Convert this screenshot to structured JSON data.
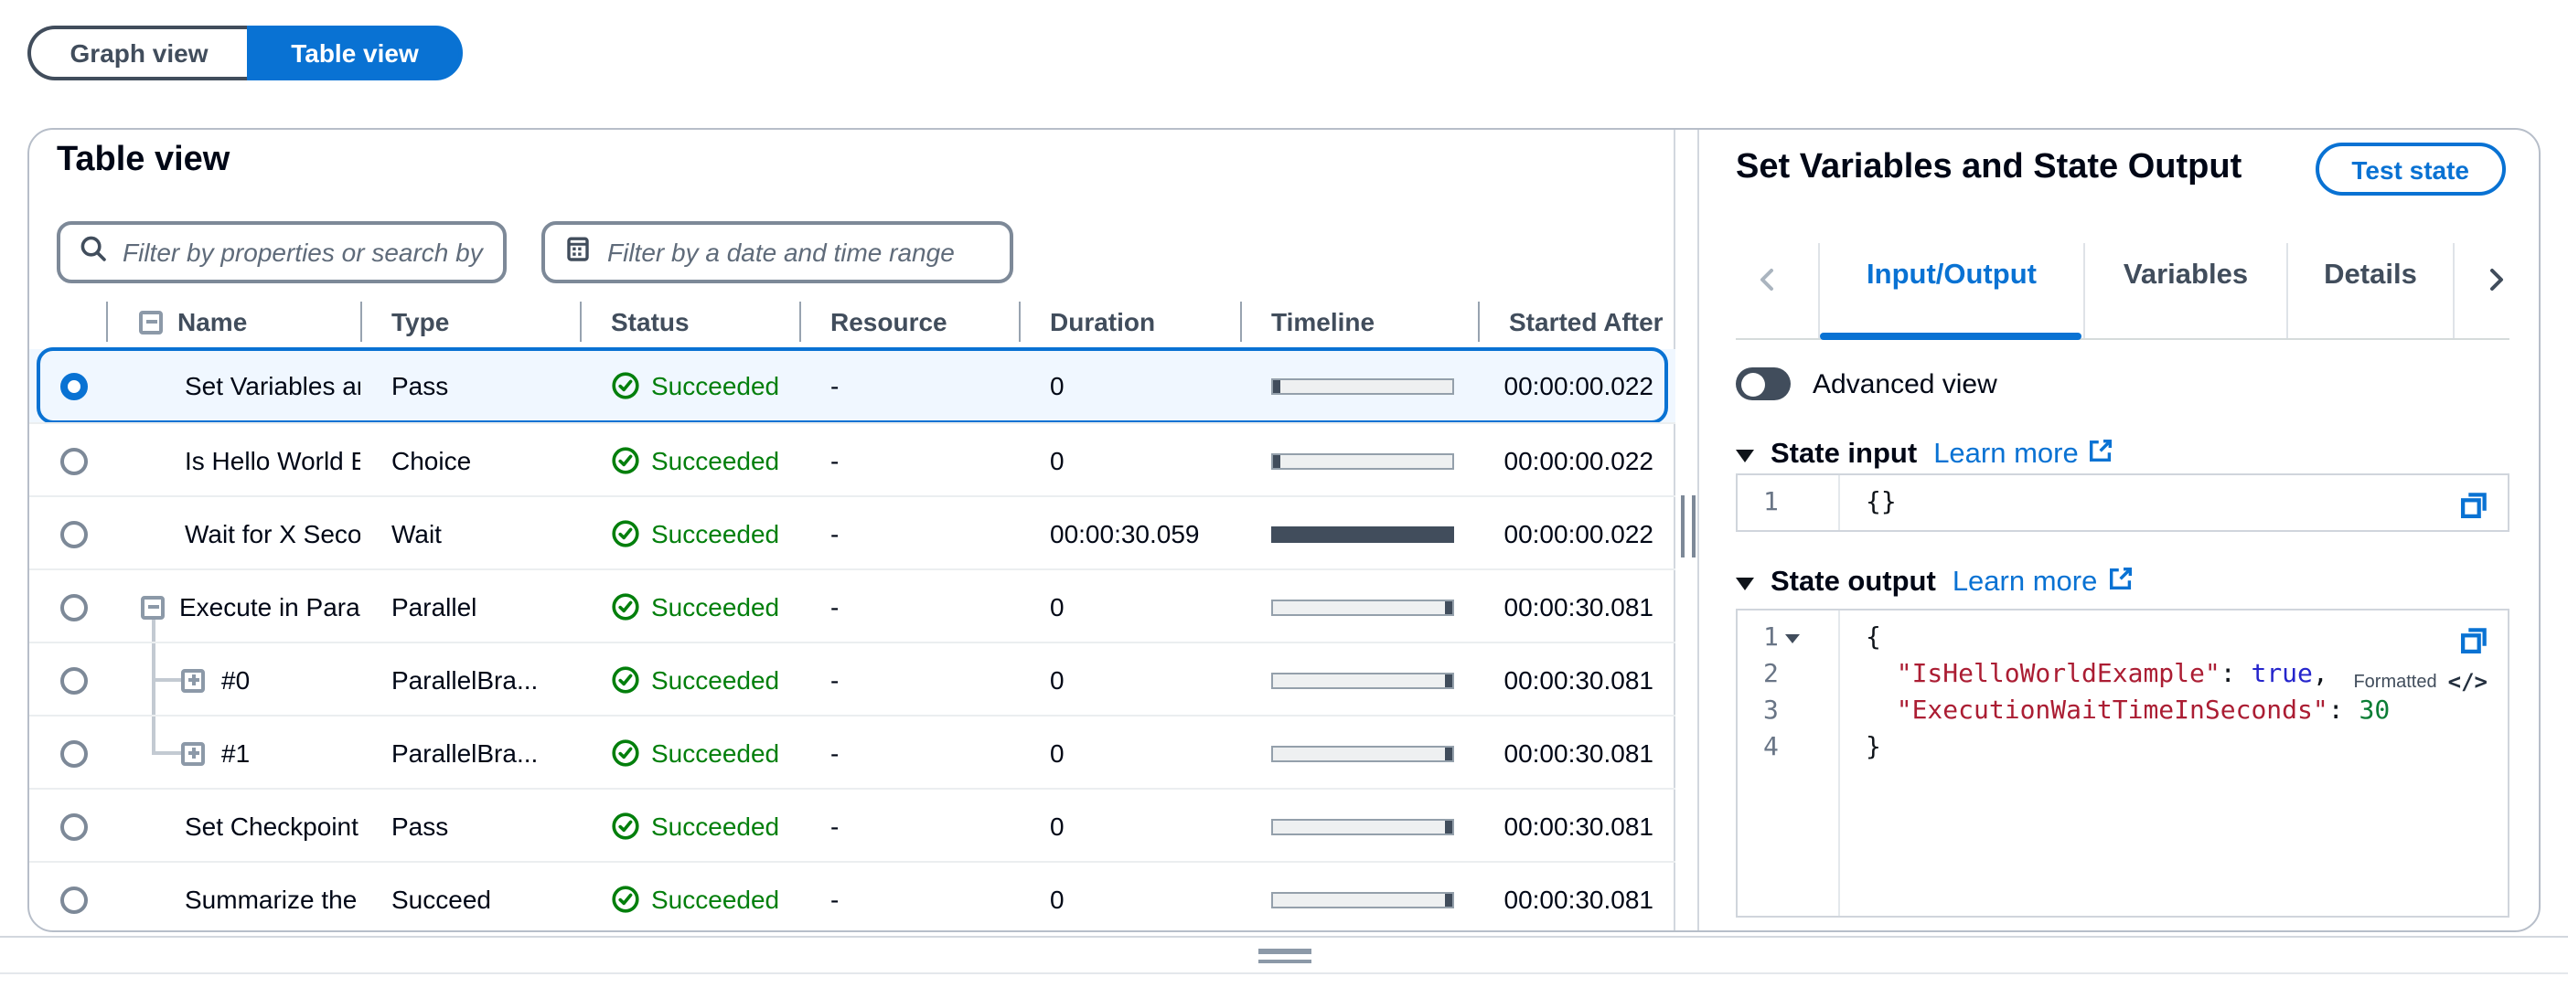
{
  "colors": {
    "accent_blue": "#0972d3",
    "success_green": "#037f0c",
    "selected_row_bg": "#f0f7ff",
    "text_primary": "#000716",
    "text_secondary": "#414d5c",
    "placeholder": "#5f6b7a",
    "timeline_dark": "#414d5c",
    "code_key": "#ab1d33",
    "code_bool": "#2525cc",
    "code_number": "#0b7d35"
  },
  "view_toggle": {
    "options": [
      {
        "label": "Graph view",
        "active": false
      },
      {
        "label": "Table view",
        "active": true
      }
    ]
  },
  "left_panel": {
    "title": "Table view",
    "search_filter": {
      "placeholder": "Filter by properties or search by keyword"
    },
    "date_filter": {
      "placeholder": "Filter by a date and time range"
    },
    "table": {
      "columns": [
        "Name",
        "Type",
        "Status",
        "Resource",
        "Duration",
        "Timeline",
        "Started After"
      ],
      "rows": [
        {
          "name": "Set Variables ar",
          "type": "Pass",
          "status": "Succeeded",
          "resource": "-",
          "duration": "0",
          "timeline": "start",
          "started_after": "00:00:00.022",
          "selected": true,
          "tree": "none"
        },
        {
          "name": "Is Hello World E",
          "type": "Choice",
          "status": "Succeeded",
          "resource": "-",
          "duration": "0",
          "timeline": "start",
          "started_after": "00:00:00.022",
          "selected": false,
          "tree": "none"
        },
        {
          "name": "Wait for X Secor",
          "type": "Wait",
          "status": "Succeeded",
          "resource": "-",
          "duration": "00:00:30.059",
          "timeline": "full",
          "started_after": "00:00:00.022",
          "selected": false,
          "tree": "none"
        },
        {
          "name": "Execute in Para",
          "type": "Parallel",
          "status": "Succeeded",
          "resource": "-",
          "duration": "0",
          "timeline": "end",
          "started_after": "00:00:30.081",
          "selected": false,
          "tree": "parent"
        },
        {
          "name": "#0",
          "type": "ParallelBra...",
          "status": "Succeeded",
          "resource": "-",
          "duration": "0",
          "timeline": "end",
          "started_after": "00:00:30.081",
          "selected": false,
          "tree": "child"
        },
        {
          "name": "#1",
          "type": "ParallelBra...",
          "status": "Succeeded",
          "resource": "-",
          "duration": "0",
          "timeline": "end",
          "started_after": "00:00:30.081",
          "selected": false,
          "tree": "child-last"
        },
        {
          "name": "Set Checkpoint",
          "type": "Pass",
          "status": "Succeeded",
          "resource": "-",
          "duration": "0",
          "timeline": "end",
          "started_after": "00:00:30.081",
          "selected": false,
          "tree": "none"
        },
        {
          "name": "Summarize the",
          "type": "Succeed",
          "status": "Succeeded",
          "resource": "-",
          "duration": "0",
          "timeline": "end",
          "started_after": "00:00:30.081",
          "selected": false,
          "tree": "none"
        }
      ]
    }
  },
  "right_panel": {
    "title": "Set Variables and State Output",
    "test_state_button": "Test state",
    "tabs": [
      {
        "label": "Input/Output",
        "active": true
      },
      {
        "label": "Variables",
        "active": false
      },
      {
        "label": "Details",
        "active": false
      }
    ],
    "advanced_view_label": "Advanced view",
    "state_input": {
      "title": "State input",
      "learn_more": "Learn more",
      "lines": [
        {
          "num": "1",
          "fold": false,
          "tokens": [
            {
              "text": "{}",
              "type": "plain"
            }
          ]
        }
      ]
    },
    "state_output": {
      "title": "State output",
      "learn_more": "Learn more",
      "formatted_badge": "Formatted",
      "lines": [
        {
          "num": "1",
          "fold": true,
          "tokens": [
            {
              "text": "{",
              "type": "plain"
            }
          ]
        },
        {
          "num": "2",
          "fold": false,
          "tokens": [
            {
              "text": "  ",
              "type": "plain"
            },
            {
              "text": "\"IsHelloWorldExample\"",
              "type": "key"
            },
            {
              "text": ": ",
              "type": "plain"
            },
            {
              "text": "true",
              "type": "bool"
            },
            {
              "text": ",",
              "type": "plain"
            }
          ]
        },
        {
          "num": "3",
          "fold": false,
          "tokens": [
            {
              "text": "  ",
              "type": "plain"
            },
            {
              "text": "\"ExecutionWaitTimeInSeconds\"",
              "type": "key"
            },
            {
              "text": ": ",
              "type": "plain"
            },
            {
              "text": "30",
              "type": "num"
            }
          ]
        },
        {
          "num": "4",
          "fold": false,
          "tokens": [
            {
              "text": "}",
              "type": "plain"
            }
          ]
        }
      ]
    }
  },
  "icons": [
    "search-icon",
    "calendar-icon",
    "collapse-all-icon",
    "collapse-icon",
    "expand-icon",
    "success-check-icon",
    "chevron-left-icon",
    "chevron-right-icon",
    "caret-down-icon",
    "external-link-icon",
    "copy-icon",
    "code-icon",
    "vertical-drag-handle",
    "horizontal-drag-handle"
  ]
}
